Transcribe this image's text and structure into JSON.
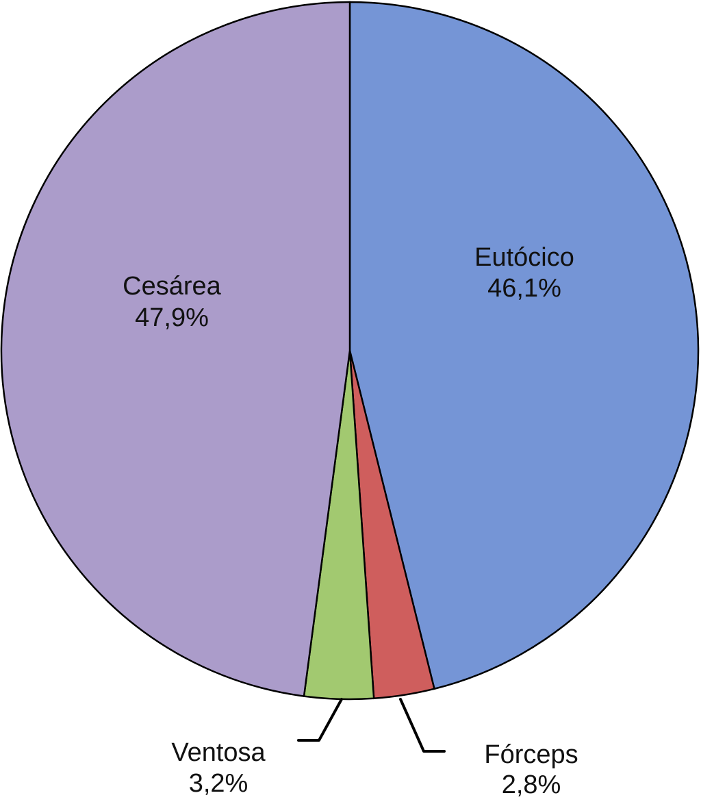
{
  "chart_data": {
    "type": "pie",
    "title": "",
    "start_angle_deg": 0,
    "direction": "clockwise",
    "stroke_color": "#000000",
    "background": "#ffffff",
    "slices": [
      {
        "label": "Eutócico",
        "pct_label": "46,1%",
        "value": 46.1,
        "color": "#7595d6",
        "label_position": "inside"
      },
      {
        "label": "Fórceps",
        "pct_label": "2,8%",
        "value": 2.8,
        "color": "#cf5e5d",
        "label_position": "outside-callout"
      },
      {
        "label": "Ventosa",
        "pct_label": "3,2%",
        "value": 3.2,
        "color": "#a2c970",
        "label_position": "outside-callout"
      },
      {
        "label": "Cesárea",
        "pct_label": "47,9%",
        "value": 47.9,
        "color": "#ab9cca",
        "label_position": "inside"
      }
    ]
  }
}
